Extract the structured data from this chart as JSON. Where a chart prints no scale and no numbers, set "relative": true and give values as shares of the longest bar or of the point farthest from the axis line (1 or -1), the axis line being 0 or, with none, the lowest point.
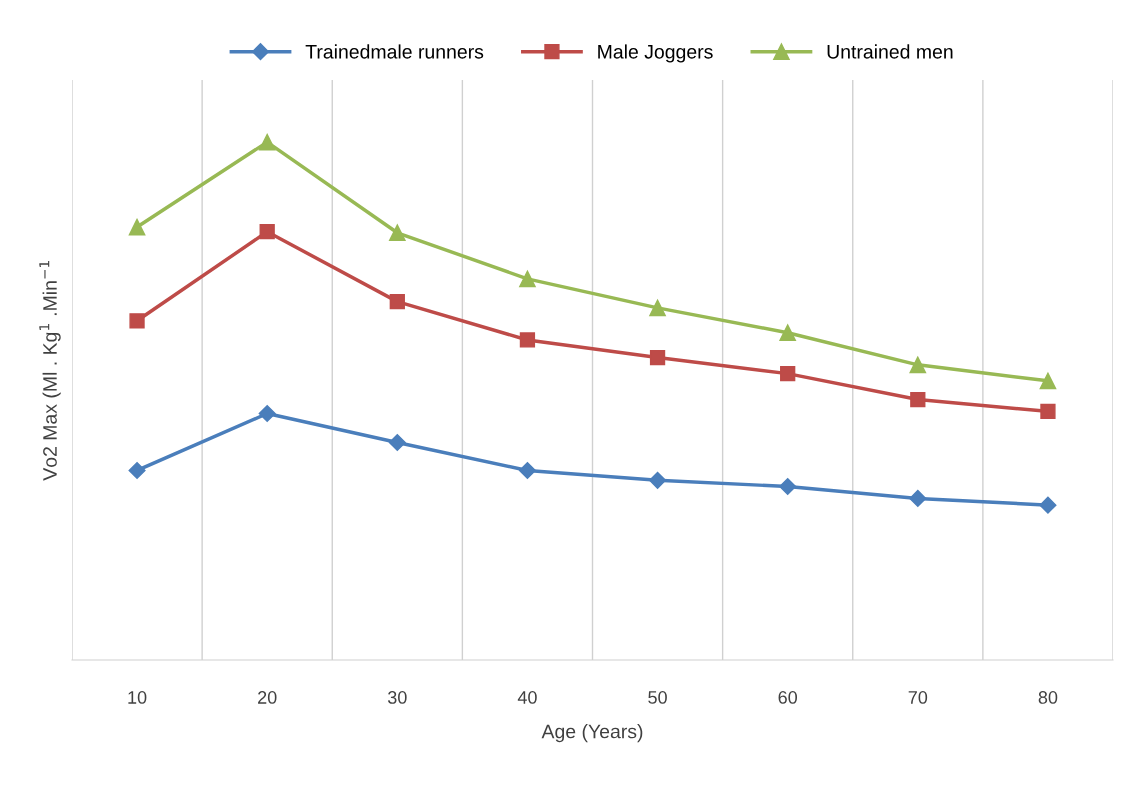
{
  "chart_data": {
    "type": "line",
    "relative": true,
    "xlabel": "Age (Years)",
    "ylabel": "Vo2 Max (Ml . Kg$^{1}$ .Min$^{−1}$",
    "categories": [
      "10",
      "20",
      "30",
      "40",
      "50",
      "60",
      "70",
      "80"
    ],
    "series": [
      {
        "name": "Trainedmale runners",
        "color": "#4a7ebb",
        "marker": "diamond",
        "values": [
          0.366,
          0.476,
          0.42,
          0.366,
          0.347,
          0.335,
          0.312,
          0.299
        ]
      },
      {
        "name": "Male Joggers",
        "color": "#be4b48",
        "marker": "square",
        "values": [
          0.655,
          0.827,
          0.692,
          0.618,
          0.584,
          0.553,
          0.503,
          0.48
        ]
      },
      {
        "name": "Untrained men",
        "color": "#98b954",
        "marker": "triangle",
        "values": [
          0.836,
          1.0,
          0.825,
          0.736,
          0.68,
          0.632,
          0.57,
          0.539
        ]
      }
    ],
    "grid": "x",
    "legend": "top",
    "line_style": "solid"
  }
}
